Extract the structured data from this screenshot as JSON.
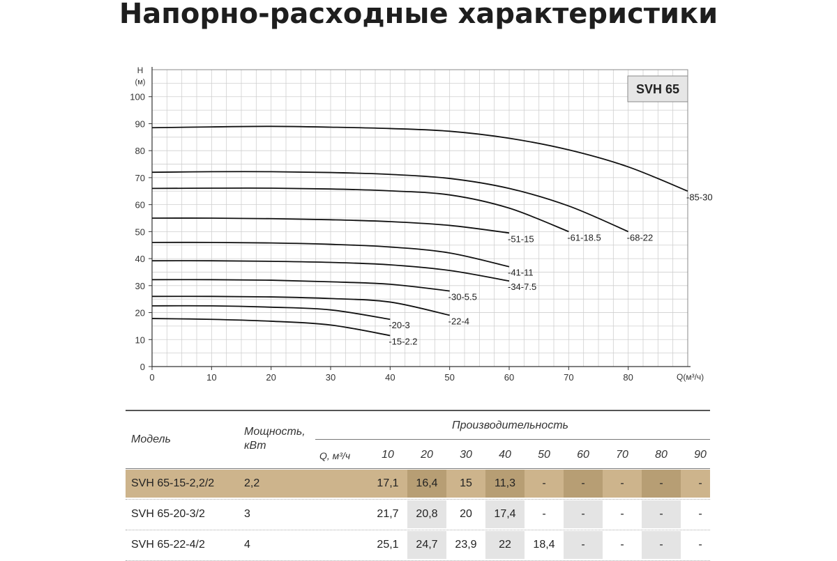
{
  "title": "Напорно-расходные характеристики",
  "chart_data": {
    "type": "line",
    "badge": "SVH 65",
    "y_axis_label": "H",
    "y_axis_unit": "(м)",
    "x_axis_label": "Q(м³/ч)",
    "xlim": [
      0,
      90
    ],
    "ylim": [
      0,
      110
    ],
    "x_ticks": [
      "0",
      "10",
      "20",
      "30",
      "40",
      "50",
      "60",
      "70",
      "80"
    ],
    "y_ticks": [
      "0",
      "10",
      "20",
      "30",
      "40",
      "50",
      "60",
      "70",
      "80",
      "90",
      "100"
    ],
    "grid": true,
    "series": [
      {
        "name": "-85-30",
        "x": [
          0,
          10,
          20,
          30,
          40,
          50,
          60,
          70,
          80,
          90
        ],
        "y": [
          88.5,
          88.8,
          89,
          88.7,
          88.2,
          87.2,
          84.6,
          80.3,
          74,
          65
        ]
      },
      {
        "name": "-68-22",
        "x": [
          0,
          10,
          20,
          30,
          40,
          50,
          60,
          70,
          80
        ],
        "y": [
          72,
          72.2,
          72.2,
          71.9,
          71.2,
          69.7,
          66,
          59.5,
          50
        ]
      },
      {
        "name": "-61-18.5",
        "x": [
          0,
          10,
          20,
          30,
          40,
          50,
          60,
          70
        ],
        "y": [
          66,
          66.1,
          66.1,
          65.8,
          65.1,
          63.6,
          58.7,
          50
        ]
      },
      {
        "name": "-51-15",
        "x": [
          0,
          10,
          20,
          30,
          40,
          50,
          60
        ],
        "y": [
          55,
          55,
          54.8,
          54.4,
          53.7,
          52.3,
          49.5
        ]
      },
      {
        "name": "-41-11",
        "x": [
          0,
          10,
          20,
          30,
          40,
          50,
          60
        ],
        "y": [
          46,
          46,
          45.8,
          45.3,
          44.3,
          42.1,
          37
        ]
      },
      {
        "name": "-34-7.5",
        "x": [
          0,
          10,
          20,
          30,
          40,
          50,
          60
        ],
        "y": [
          39.2,
          39.2,
          39,
          38.6,
          37.7,
          35.6,
          31.7
        ]
      },
      {
        "name": "-30-5.5",
        "x": [
          0,
          10,
          20,
          30,
          40,
          50
        ],
        "y": [
          32.2,
          32.2,
          32,
          31.4,
          30.5,
          28
        ]
      },
      {
        "name": "-22-4",
        "x": [
          0,
          10,
          20,
          30,
          40,
          50
        ],
        "y": [
          26,
          26,
          25.8,
          25.2,
          23.9,
          19
        ]
      },
      {
        "name": "-20-3",
        "x": [
          0,
          10,
          20,
          30,
          40
        ],
        "y": [
          22.5,
          22.5,
          22,
          21,
          17.5
        ]
      },
      {
        "name": "-15-2.2",
        "x": [
          0,
          10,
          20,
          30,
          40
        ],
        "y": [
          17.8,
          17.5,
          16.8,
          15.4,
          11.5
        ]
      }
    ]
  },
  "table": {
    "col_model": "Модель",
    "col_power": "Мощность, кВт",
    "col_perf": "Производительность",
    "q_label": "Q, м³/ч",
    "q_values": [
      "10",
      "20",
      "30",
      "40",
      "50",
      "60",
      "70",
      "80",
      "90"
    ],
    "highlight_color": "#cdb48c",
    "rows": [
      {
        "model": "SVH 65-15-2,2/2",
        "power": "2,2",
        "values": [
          "17,1",
          "16,4",
          "15",
          "11,3",
          "-",
          "-",
          "-",
          "-",
          "-"
        ]
      },
      {
        "model": "SVH 65-20-3/2",
        "power": "3",
        "values": [
          "21,7",
          "20,8",
          "20",
          "17,4",
          "-",
          "-",
          "-",
          "-",
          "-"
        ]
      },
      {
        "model": "SVH 65-22-4/2",
        "power": "4",
        "values": [
          "25,1",
          "24,7",
          "23,9",
          "22",
          "18,4",
          "-",
          "-",
          "-",
          "-"
        ]
      }
    ]
  }
}
